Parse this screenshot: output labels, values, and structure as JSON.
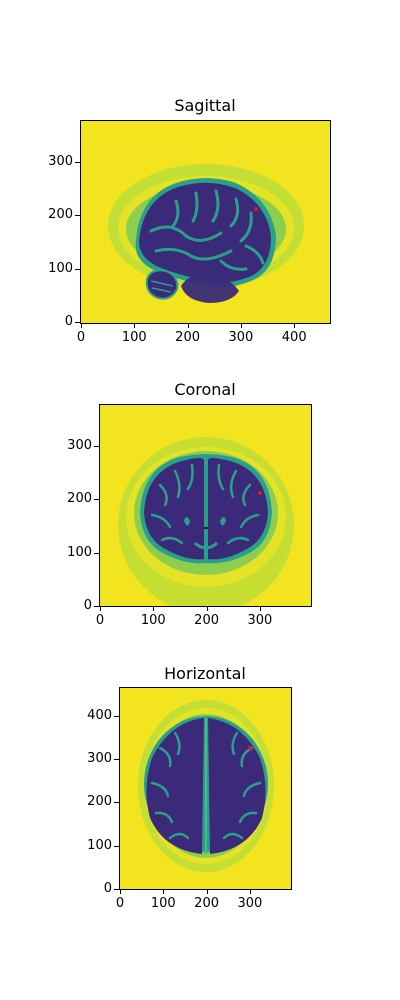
{
  "panels": [
    {
      "title": "Sagittal",
      "x_ticks": [
        "0",
        "100",
        "200",
        "300",
        "400"
      ],
      "y_ticks": [
        "0",
        "100",
        "200",
        "300"
      ],
      "marker_color": "#e8171a"
    },
    {
      "title": "Coronal",
      "x_ticks": [
        "0",
        "100",
        "200",
        "300"
      ],
      "y_ticks": [
        "0",
        "100",
        "200",
        "300"
      ],
      "marker_color": "#e8171a"
    },
    {
      "title": "Horizontal",
      "x_ticks": [
        "0",
        "100",
        "200",
        "300"
      ],
      "y_ticks": [
        "0",
        "100",
        "200",
        "300",
        "400"
      ],
      "marker_color": "#e8171a"
    }
  ],
  "colors": {
    "background_yellow": "#f2e41f",
    "scalp_green": "#9fd24a",
    "tissue_teal": "#2aa08a",
    "brain_purple": "#3b2a7a",
    "brain_dark": "#2c1a5e"
  }
}
